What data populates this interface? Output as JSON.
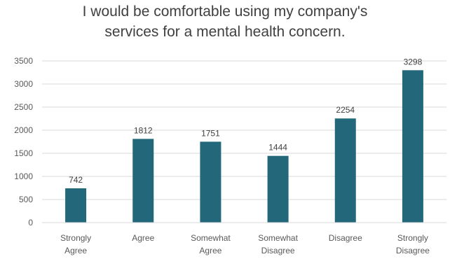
{
  "chart_data": {
    "type": "bar",
    "title_lines": [
      "I would be comfortable using my company's",
      "services for a mental health concern."
    ],
    "categories": [
      [
        "Strongly",
        "Agree"
      ],
      [
        "Agree"
      ],
      [
        "Somewhat",
        "Agree"
      ],
      [
        "Somewhat",
        "Disagree"
      ],
      [
        "Disagree"
      ],
      [
        "Strongly",
        "Disagree"
      ]
    ],
    "values": [
      742,
      1812,
      1751,
      1444,
      2254,
      3298
    ],
    "data_labels": [
      "742",
      "1812",
      "1751",
      "1444",
      "2254",
      "3298"
    ],
    "yticks": [
      "0",
      "500",
      "1000",
      "1500",
      "2000",
      "2500",
      "3000",
      "3500"
    ],
    "ylim": [
      0,
      3500
    ],
    "grid": true,
    "bar_color": "#22687A",
    "grid_color": "#D9D9D9"
  }
}
